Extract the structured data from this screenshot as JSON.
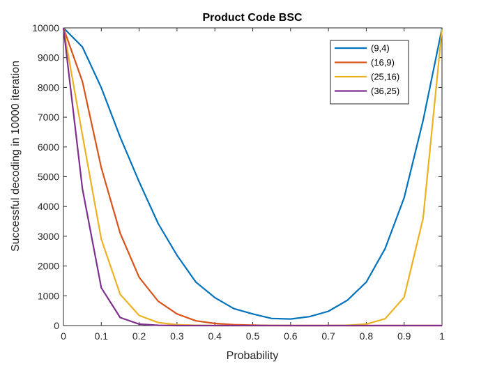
{
  "chart_data": {
    "type": "line",
    "title": "Product Code BSC",
    "xlabel": "Probability",
    "ylabel": "Successful decoding in 10000 iteration",
    "xlim": [
      0,
      1
    ],
    "ylim": [
      0,
      10000
    ],
    "xticks": [
      "0",
      "0.1",
      "0.2",
      "0.3",
      "0.4",
      "0.5",
      "0.6",
      "0.7",
      "0.8",
      "0.9",
      "1"
    ],
    "yticks": [
      "0",
      "1000",
      "2000",
      "3000",
      "4000",
      "5000",
      "6000",
      "7000",
      "8000",
      "9000",
      "10000"
    ],
    "grid": false,
    "legend_position": "top-right",
    "x": [
      0,
      0.05,
      0.1,
      0.15,
      0.2,
      0.25,
      0.3,
      0.35,
      0.4,
      0.45,
      0.5,
      0.55,
      0.6,
      0.65,
      0.7,
      0.75,
      0.8,
      0.85,
      0.9,
      0.95,
      1
    ],
    "series": [
      {
        "name": "(9,4)",
        "color": "#0072BD",
        "values": [
          10000,
          9360,
          7990,
          6330,
          4830,
          3430,
          2360,
          1460,
          940,
          570,
          390,
          240,
          220,
          300,
          480,
          850,
          1460,
          2590,
          4290,
          6890,
          9980
        ]
      },
      {
        "name": "(16,9)",
        "color": "#D95319",
        "values": [
          10000,
          8200,
          5300,
          3100,
          1620,
          820,
          390,
          160,
          70,
          30,
          15,
          5,
          0,
          0,
          0,
          0,
          0,
          0,
          0,
          0,
          0
        ]
      },
      {
        "name": "(25,16)",
        "color": "#EDB120",
        "values": [
          10000,
          6400,
          2900,
          1050,
          340,
          100,
          30,
          10,
          0,
          0,
          0,
          0,
          0,
          0,
          0,
          10,
          50,
          230,
          950,
          3600,
          9960
        ]
      },
      {
        "name": "(36,25)",
        "color": "#7E2F8E",
        "values": [
          10000,
          4600,
          1270,
          270,
          50,
          10,
          0,
          0,
          0,
          0,
          0,
          0,
          0,
          0,
          0,
          0,
          0,
          0,
          0,
          0,
          0
        ]
      }
    ]
  }
}
